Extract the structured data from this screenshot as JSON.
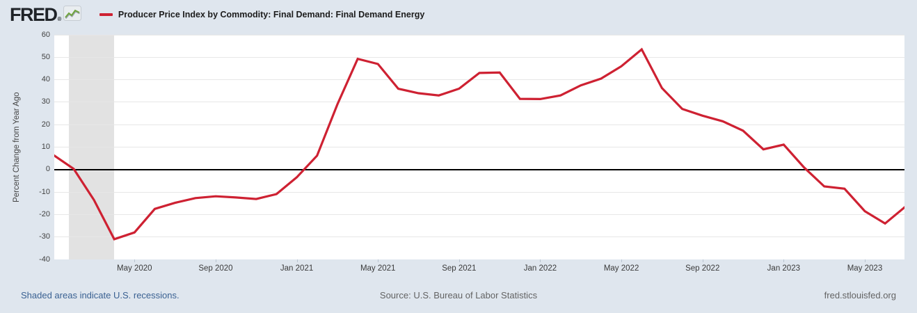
{
  "header": {
    "logo_text": "FRED",
    "logo_registered": "®",
    "legend_label": "Producer Price Index by Commodity: Final Demand: Final Demand Energy"
  },
  "footer": {
    "recession_note": "Shaded areas indicate U.S. recessions.",
    "source": "Source: U.S. Bureau of Labor Statistics",
    "site": "fred.stlouisfed.org"
  },
  "colors": {
    "series_red": "#ce2132",
    "background": "#dfe6ee",
    "plot_background": "#ffffff",
    "recession_band": "#e2e2e2",
    "zero_line": "#000000",
    "gridline": "#e7e7e7",
    "logo_sparkline_green": "#6fa43c"
  },
  "chart_data": {
    "type": "line",
    "title": "Producer Price Index by Commodity: Final Demand: Final Demand Energy",
    "ylabel": "Percent Change from Year Ago",
    "ylim": [
      -40,
      60
    ],
    "grid": true,
    "legend_position": "top-left",
    "y_ticks": [
      60,
      50,
      40,
      30,
      20,
      10,
      0,
      -10,
      -20,
      -30,
      -40
    ],
    "x_ticks": [
      {
        "label": "May 2020",
        "month": "2020-05"
      },
      {
        "label": "Sep 2020",
        "month": "2020-09"
      },
      {
        "label": "Jan 2021",
        "month": "2021-01"
      },
      {
        "label": "May 2021",
        "month": "2021-05"
      },
      {
        "label": "Sep 2021",
        "month": "2021-09"
      },
      {
        "label": "Jan 2022",
        "month": "2022-01"
      },
      {
        "label": "May 2022",
        "month": "2022-05"
      },
      {
        "label": "Sep 2022",
        "month": "2022-09"
      },
      {
        "label": "Jan 2023",
        "month": "2023-01"
      },
      {
        "label": "May 2023",
        "month": "2023-05"
      }
    ],
    "x": [
      "2020-01",
      "2020-02",
      "2020-03",
      "2020-04",
      "2020-05",
      "2020-06",
      "2020-07",
      "2020-08",
      "2020-09",
      "2020-10",
      "2020-11",
      "2020-12",
      "2021-01",
      "2021-02",
      "2021-03",
      "2021-04",
      "2021-05",
      "2021-06",
      "2021-07",
      "2021-08",
      "2021-09",
      "2021-10",
      "2021-11",
      "2021-12",
      "2022-01",
      "2022-02",
      "2022-03",
      "2022-04",
      "2022-05",
      "2022-06",
      "2022-07",
      "2022-08",
      "2022-09",
      "2022-10",
      "2022-11",
      "2022-12",
      "2023-01",
      "2023-02",
      "2023-03",
      "2023-04",
      "2023-05",
      "2023-06",
      "2023-07"
    ],
    "values": [
      6.5,
      0.3,
      -13.5,
      -31.0,
      -28.0,
      -17.5,
      -14.8,
      -12.7,
      -11.9,
      -12.4,
      -13.1,
      -10.9,
      -3.4,
      6.2,
      29.0,
      49.3,
      47.0,
      36.0,
      34.0,
      33.0,
      36.0,
      43.0,
      43.2,
      31.5,
      31.4,
      33.0,
      37.5,
      40.5,
      46.0,
      53.5,
      36.3,
      27.0,
      24.0,
      21.5,
      17.3,
      9.0,
      11.1,
      1.0,
      -7.5,
      -8.5,
      -18.5,
      -24.0,
      -16.5
    ],
    "recession_band": {
      "from": "2020-02",
      "to": "2020-04"
    }
  }
}
